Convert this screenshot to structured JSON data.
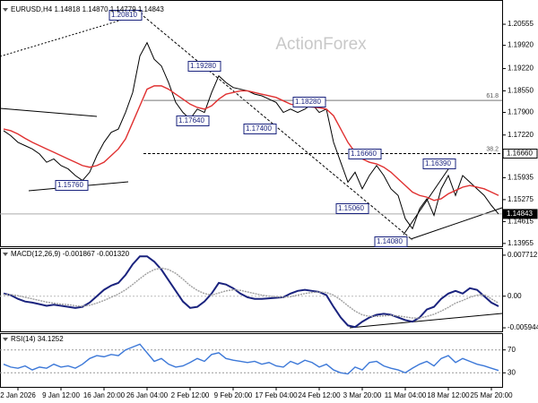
{
  "chart_data": [
    {
      "type": "line",
      "title": "EURUSD,H4 1.14818 1.14870 1.14779 1.14843",
      "watermark": "ActionForex",
      "categories": [
        null,
        null,
        "2 Jan 2026",
        null,
        null,
        null,
        null,
        null,
        "9 Jan 12:00",
        null,
        null,
        null,
        null,
        null,
        "16 Jan 20:00",
        null,
        null,
        null,
        null,
        null,
        "26 Jan 04:00",
        null,
        null,
        null,
        null,
        null,
        "2 Feb 12:00",
        null,
        null,
        null,
        null,
        null,
        "9 Feb 20:00",
        null,
        null,
        null,
        null,
        null,
        "17 Feb 04:00",
        null,
        null,
        null,
        null,
        null,
        "24 Feb 12:00",
        null,
        null,
        null,
        null,
        null,
        "3 Mar 20:00",
        null,
        null,
        null,
        null,
        null,
        "11 Mar 04:00",
        null,
        null,
        null,
        null,
        null,
        "18 Mar 12:00",
        null,
        null,
        null,
        null,
        null,
        "25 Mar 20:00",
        null
      ],
      "series": [
        {
          "color": "#000000",
          "values": [
            1.1735,
            1.172,
            1.17,
            1.169,
            1.168,
            1.1665,
            1.164,
            1.165,
            1.163,
            1.162,
            1.16,
            1.1585,
            1.161,
            1.166,
            1.17,
            1.173,
            1.174,
            1.179,
            1.185,
            1.196,
            1.2,
            1.195,
            1.193,
            1.188,
            1.182,
            1.179,
            1.177,
            1.18,
            1.179,
            1.185,
            1.19,
            1.188,
            1.1865,
            1.186,
            1.1855,
            1.1845,
            1.184,
            1.183,
            1.182,
            1.179,
            1.18,
            1.179,
            1.18,
            1.1815,
            1.179,
            1.18,
            1.17,
            1.164,
            1.158,
            1.161,
            1.156,
            1.16,
            1.163,
            1.16,
            1.156,
            1.154,
            1.147,
            1.144,
            1.15,
            1.153,
            1.148,
            1.156,
            1.16,
            1.154,
            1.16,
            1.158,
            1.156,
            1.154,
            1.151,
            1.14843
          ]
        },
        {
          "color": "#e03030",
          "values": [
            1.174,
            1.1735,
            1.1725,
            1.1712,
            1.17,
            1.169,
            1.168,
            1.167,
            1.166,
            1.165,
            1.164,
            1.163,
            1.1625,
            1.163,
            1.164,
            1.166,
            1.168,
            1.171,
            1.176,
            1.181,
            1.186,
            1.187,
            1.187,
            1.186,
            1.1845,
            1.183,
            1.1815,
            1.1805,
            1.18,
            1.181,
            1.183,
            1.1845,
            1.185,
            1.1855,
            1.1855,
            1.185,
            1.1845,
            1.184,
            1.1835,
            1.1825,
            1.1815,
            1.181,
            1.1808,
            1.1806,
            1.1804,
            1.18,
            1.178,
            1.174,
            1.17,
            1.167,
            1.165,
            1.164,
            1.1635,
            1.1625,
            1.161,
            1.159,
            1.157,
            1.155,
            1.154,
            1.1535,
            1.1525,
            1.153,
            1.1545,
            1.1555,
            1.1565,
            1.157,
            1.1565,
            1.156,
            1.155,
            1.154
          ]
        }
      ],
      "ylim": [
        1.1387,
        1.2115
      ],
      "yticks": [
        1.20555,
        {
          "value": 1.1992,
          "label": "1.19920"
        },
        {
          "value": 1.1922,
          "label": "1.19220"
        },
        {
          "value": 1.1855,
          "label": "1.18550"
        },
        {
          "value": 1.179,
          "label": "1.17900"
        },
        {
          "value": 1.1722,
          "label": "1.17220"
        },
        1.15935,
        1.15275,
        1.14615,
        1.13955
      ],
      "axis_markers": [
        {
          "value": 1.1666,
          "label": "1.16660"
        },
        {
          "value": 1.14843,
          "label": "1.14843"
        }
      ],
      "fib_levels": [
        {
          "ratio": 61.8,
          "price": 1.1826
        },
        {
          "ratio": 38.2,
          "price": 1.1666
        }
      ],
      "annotations": [
        {
          "value": 1.2081,
          "label": "1.20810"
        },
        {
          "value": 1.1928,
          "label": "1.19280"
        },
        {
          "value": 1.1764,
          "label": "1.17640"
        },
        {
          "value": 1.174,
          "label": "1.17400"
        },
        {
          "value": 1.1828,
          "label": "1.18280"
        },
        {
          "value": 1.1666,
          "label": "1.16660"
        },
        {
          "value": 1.1576,
          "label": "1.15760"
        },
        {
          "value": 1.1506,
          "label": "1.15060"
        },
        {
          "value": 1.1639,
          "label": "1.16390"
        },
        {
          "value": 1.1408,
          "label": "1.14080"
        }
      ]
    },
    {
      "type": "line",
      "title": "MACD(12,26,9) -0.001867 -0.001320",
      "series": [
        {
          "color": "#1a237e",
          "values": [
            0.0005,
            0.0002,
            -0.0005,
            -0.001,
            -0.0012,
            -0.0015,
            -0.0018,
            -0.0016,
            -0.0018,
            -0.002,
            -0.0022,
            -0.002,
            -0.0012,
            0,
            0.0012,
            0.002,
            0.0025,
            0.004,
            0.006,
            0.0075,
            0.0075,
            0.0065,
            0.005,
            0.003,
            0.001,
            -0.001,
            -0.0022,
            -0.002,
            -0.001,
            0.0005,
            0.0025,
            0.0022,
            0.0015,
            0.0005,
            -0.0002,
            -0.0005,
            -0.0005,
            -0.0004,
            -0.0003,
            -0.0002,
            0.0005,
            0.001,
            0.0012,
            0.001,
            0.0008,
            0.0002,
            -0.002,
            -0.004,
            -0.0055,
            -0.0058,
            -0.0048,
            -0.004,
            -0.0035,
            -0.0033,
            -0.0035,
            -0.004,
            -0.0045,
            -0.0048,
            -0.004,
            -0.0025,
            -0.002,
            -0.0005,
            0.0005,
            0.001,
            0.0005,
            0.0015,
            0.0012,
            0,
            -0.0012,
            -0.0019
          ]
        },
        {
          "color": "#9e9e9e",
          "values": [
            0.0003,
            0.0003,
            0.0001,
            -0.0002,
            -0.0005,
            -0.0008,
            -0.0011,
            -0.0013,
            -0.0015,
            -0.0016,
            -0.0018,
            -0.0019,
            -0.0017,
            -0.0013,
            -0.0008,
            -0.0002,
            0.0004,
            0.0012,
            0.0022,
            0.0033,
            0.0043,
            0.005,
            0.0053,
            0.005,
            0.0043,
            0.0032,
            0.002,
            0.0011,
            0.0005,
            0.0002,
            0.0006,
            0.001,
            0.0012,
            0.0011,
            0.0008,
            0.0005,
            0.0002,
            0,
            -0.0001,
            -0.0002,
            -0.0001,
            0.0002,
            0.0005,
            0.0007,
            0.0008,
            0.0007,
            0.0002,
            -0.0007,
            -0.0018,
            -0.0028,
            -0.0035,
            -0.0038,
            -0.0038,
            -0.0037,
            -0.0036,
            -0.0037,
            -0.0039,
            -0.0041,
            -0.0041,
            -0.0038,
            -0.0034,
            -0.0028,
            -0.0021,
            -0.0013,
            -0.0008,
            -0.0002,
            0.0002,
            0.0003,
            -0.0005,
            -0.0013
          ]
        }
      ],
      "ylim": [
        -0.00661,
        0.00888
      ],
      "yticks": [
        0.007712,
        {
          "value": 0,
          "label": "0.00"
        },
        -0.005944
      ]
    },
    {
      "type": "line",
      "title": "RSI(14) 34.1252",
      "series": [
        {
          "color": "#3c78d8",
          "values": [
            45,
            40,
            38,
            42,
            35,
            40,
            38,
            45,
            40,
            42,
            38,
            45,
            55,
            60,
            58,
            62,
            60,
            70,
            75,
            80,
            65,
            50,
            55,
            45,
            40,
            42,
            48,
            55,
            50,
            62,
            65,
            55,
            52,
            50,
            48,
            50,
            45,
            48,
            42,
            40,
            50,
            45,
            52,
            48,
            40,
            45,
            35,
            30,
            28,
            40,
            35,
            48,
            50,
            42,
            38,
            35,
            30,
            38,
            45,
            50,
            42,
            55,
            60,
            48,
            55,
            50,
            45,
            42,
            38,
            34
          ]
        }
      ],
      "ylim": [
        5.4,
        97.7
      ],
      "yticks": [
        70,
        30
      ],
      "grid": true
    }
  ]
}
